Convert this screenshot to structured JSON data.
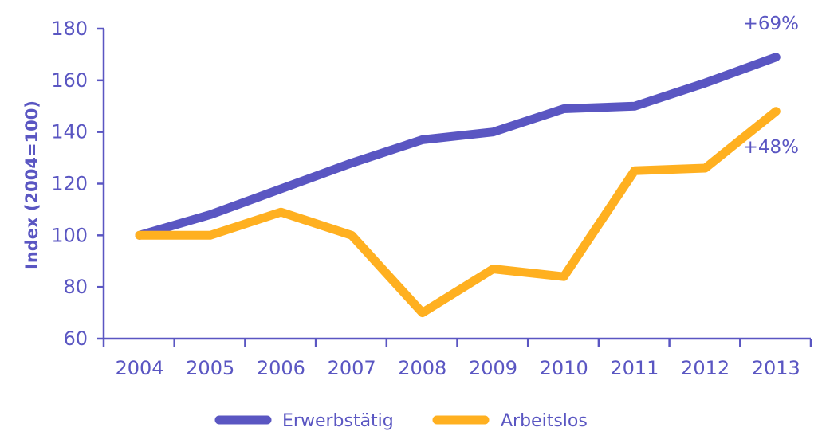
{
  "chart_data": {
    "type": "line",
    "title": "",
    "xlabel": "",
    "ylabel": "Index (2004=100)",
    "x": [
      "2004",
      "2005",
      "2006",
      "2007",
      "2008",
      "2009",
      "2010",
      "2011",
      "2012",
      "2013"
    ],
    "ylim": [
      60,
      180
    ],
    "yticks": [
      60,
      80,
      100,
      120,
      140,
      160,
      180
    ],
    "grid": false,
    "legend_position": "bottom-center",
    "series": [
      {
        "name": "Erwerbstätig",
        "color": "#5a56c2",
        "values": [
          100,
          108,
          118,
          128,
          137,
          140,
          149,
          150,
          159,
          169
        ]
      },
      {
        "name": "Arbeitslos",
        "color": "#ffb020",
        "values": [
          100,
          100,
          109,
          100,
          70,
          87,
          84,
          125,
          126,
          148
        ]
      }
    ],
    "annotations": [
      {
        "text": "+69%",
        "series": "Erwerbstätig"
      },
      {
        "text": "+48%",
        "series": "Arbeitslos"
      }
    ]
  }
}
